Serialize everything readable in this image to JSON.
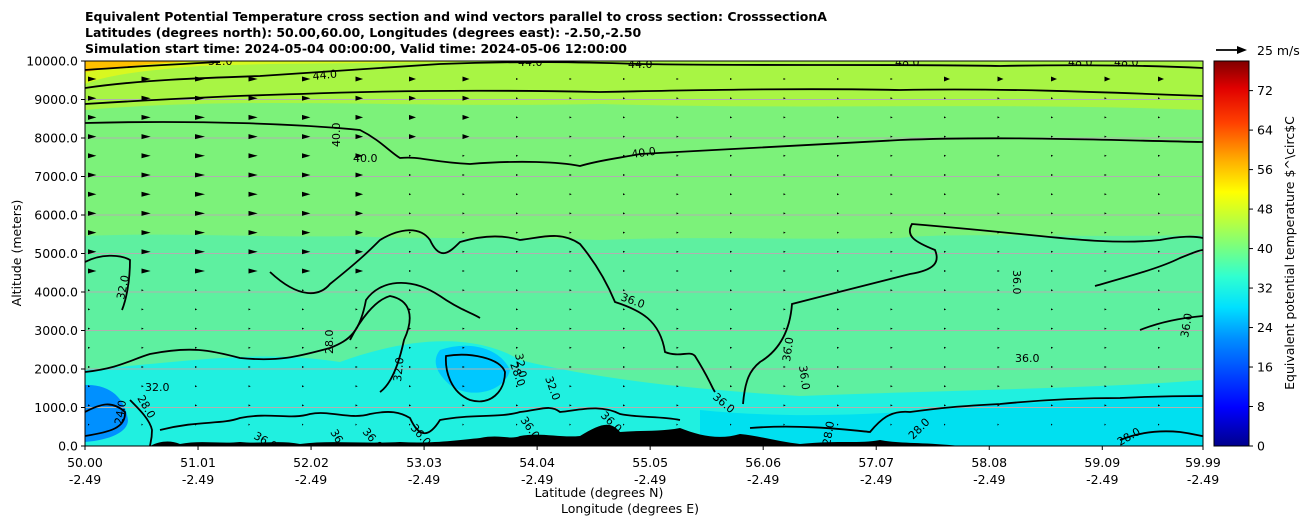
{
  "title_lines": [
    "Equivalent Potential Temperature cross section and wind vectors parallel to cross section: CrosssectionA",
    "Latitudes (degrees north): 50.00,60.00, Longitudes (degrees east): -2.50,-2.50",
    "Simulation start time: 2024-05-04 00:00:00, Valid time: 2024-05-06 12:00:00"
  ],
  "colors": {
    "background_field": "#6ef08c",
    "grid": "#b0b0b0",
    "terrain": "#000000",
    "contour": "#000000"
  },
  "chart_data": {
    "type": "heatmap",
    "title": "Equivalent Potential Temperature cross section and wind vectors parallel to cross section: CrosssectionA",
    "xlabel": "Latitude (degrees N)",
    "xlabel2": "Longitude (degrees E)",
    "ylabel": "Altitude (meters)",
    "x_ticks_lat": [
      "50.00",
      "51.01",
      "52.02",
      "53.03",
      "54.04",
      "55.05",
      "56.06",
      "57.07",
      "58.08",
      "59.09",
      "59.99"
    ],
    "x_ticks_lon": [
      "-2.49",
      "-2.49",
      "-2.49",
      "-2.49",
      "-2.49",
      "-2.49",
      "-2.49",
      "-2.49",
      "-2.49",
      "-2.49",
      "-2.49"
    ],
    "y_ticks": [
      "0.0",
      "1000.0",
      "2000.0",
      "3000.0",
      "4000.0",
      "5000.0",
      "6000.0",
      "7000.0",
      "8000.0",
      "9000.0",
      "10000.0"
    ],
    "ylim": [
      0,
      10000
    ],
    "xlim": [
      50.0,
      59.99
    ],
    "grid": "horizontal",
    "colorbar": {
      "label": "Equivalent potential temperature $^\\circ$C",
      "ticks": [
        "0",
        "8",
        "16",
        "24",
        "32",
        "40",
        "48",
        "56",
        "64",
        "72"
      ],
      "range": [
        0,
        78
      ]
    },
    "wind_key": {
      "label": "25 m/s",
      "value": 25
    },
    "contour_labels": [
      "52.0",
      "44.0",
      "44.0",
      "44.0",
      "48.0",
      "48.0",
      "48.0",
      "40.0",
      "40.0",
      "40.0",
      "32.0",
      "36.0",
      "36.0",
      "36.0",
      "36.0",
      "36.0",
      "36.0",
      "28.0",
      "32.0",
      "32.0",
      "28.0",
      "32.0",
      "24.0",
      "28.0",
      "36.0",
      "36.0",
      "32.0",
      "28.0",
      "28.0",
      "28.0",
      "36.0",
      "36.0",
      "36.0",
      "36.0",
      "36.0"
    ]
  }
}
